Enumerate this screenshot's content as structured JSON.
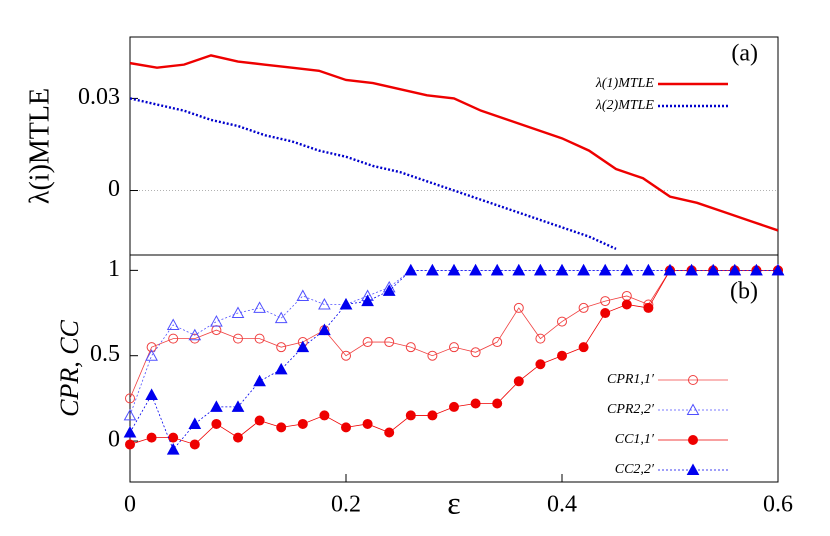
{
  "chart_data": [
    {
      "type": "line",
      "annotation": "(a)",
      "y_label": "λ(i)MTLE",
      "legend": "upper right",
      "reference_line": 0,
      "x": [
        0,
        0.025,
        0.05,
        0.075,
        0.1,
        0.125,
        0.15,
        0.175,
        0.2,
        0.225,
        0.25,
        0.275,
        0.3,
        0.325,
        0.35,
        0.375,
        0.4,
        0.425,
        0.45,
        0.475,
        0.5,
        0.525,
        0.55,
        0.575,
        0.6
      ],
      "xlim": [
        0,
        0.6
      ],
      "ylim": [
        -0.021,
        0.05
      ],
      "yticks": [
        0,
        0.03
      ],
      "series": [
        {
          "name": "λ(1)MTLE",
          "color": "#ee0000",
          "line_style": "solid",
          "values": [
            0.0415,
            0.04,
            0.041,
            0.044,
            0.042,
            0.041,
            0.04,
            0.039,
            0.036,
            0.035,
            0.033,
            0.031,
            0.03,
            0.026,
            0.023,
            0.02,
            0.017,
            0.013,
            0.007,
            0.004,
            -0.002,
            -0.004,
            -0.007,
            -0.01,
            -0.013
          ]
        },
        {
          "name": "λ(2)MTLE",
          "color": "#0000cc",
          "line_style": "dotted",
          "values": [
            0.03,
            0.028,
            0.026,
            0.023,
            0.021,
            0.018,
            0.016,
            0.013,
            0.011,
            0.008,
            0.006,
            0.003,
            0.0,
            -0.003,
            -0.006,
            -0.009,
            -0.012,
            -0.015,
            -0.019,
            null,
            null,
            null,
            null,
            null,
            null
          ]
        }
      ]
    },
    {
      "type": "line",
      "annotation": "(b)",
      "y_label": "CPR, CC",
      "x_label": "ε",
      "legend": "lower right",
      "x": [
        0,
        0.02,
        0.04,
        0.06,
        0.08,
        0.1,
        0.12,
        0.14,
        0.16,
        0.18,
        0.2,
        0.22,
        0.24,
        0.26,
        0.28,
        0.3,
        0.32,
        0.34,
        0.36,
        0.38,
        0.4,
        0.42,
        0.44,
        0.46,
        0.48,
        0.5,
        0.52,
        0.54,
        0.56,
        0.58,
        0.6
      ],
      "xlim": [
        0,
        0.6
      ],
      "ylim": [
        -0.24,
        1.09
      ],
      "xticks": [
        0,
        0.2,
        0.4,
        0.6
      ],
      "yticks": [
        0,
        0.5,
        1
      ],
      "series": [
        {
          "name": "CPR1,1′",
          "color": "#f04040",
          "marker": "circle-open",
          "line_style": "solid",
          "values": [
            0.25,
            0.55,
            0.6,
            0.6,
            0.65,
            0.6,
            0.6,
            0.55,
            0.58,
            0.65,
            0.5,
            0.58,
            0.58,
            0.55,
            0.5,
            0.55,
            0.52,
            0.58,
            0.78,
            0.6,
            0.7,
            0.78,
            0.82,
            0.85,
            0.8,
            1,
            1,
            1,
            1,
            1,
            1
          ]
        },
        {
          "name": "CPR2,2′",
          "color": "#5050ff",
          "marker": "triangle-open",
          "line_style": "dotted",
          "values": [
            0.15,
            0.5,
            0.68,
            0.62,
            0.7,
            0.75,
            0.78,
            0.72,
            0.85,
            0.8,
            0.8,
            0.85,
            0.9,
            1,
            1,
            1,
            1,
            1,
            1,
            1,
            1,
            1,
            1,
            1,
            1,
            1,
            1,
            1,
            1,
            1,
            1
          ]
        },
        {
          "name": "CC1,1′",
          "color": "#ee0000",
          "marker": "circle",
          "line_style": "solid",
          "values": [
            -0.02,
            0.02,
            0.02,
            -0.02,
            0.1,
            0.02,
            0.12,
            0.08,
            0.1,
            0.15,
            0.08,
            0.1,
            0.05,
            0.15,
            0.15,
            0.2,
            0.22,
            0.22,
            0.35,
            0.45,
            0.5,
            0.55,
            0.75,
            0.8,
            0.78,
            1,
            1,
            1,
            1,
            1,
            1
          ]
        },
        {
          "name": "CC2,2′",
          "color": "#0000ee",
          "marker": "triangle",
          "line_style": "dotted",
          "values": [
            0.05,
            0.27,
            -0.05,
            0.1,
            0.2,
            0.2,
            0.35,
            0.42,
            0.55,
            0.65,
            0.8,
            0.82,
            0.88,
            1,
            1,
            1,
            1,
            1,
            1,
            1,
            1,
            1,
            1,
            1,
            1,
            1,
            1,
            1,
            1,
            1,
            1
          ]
        }
      ]
    }
  ]
}
